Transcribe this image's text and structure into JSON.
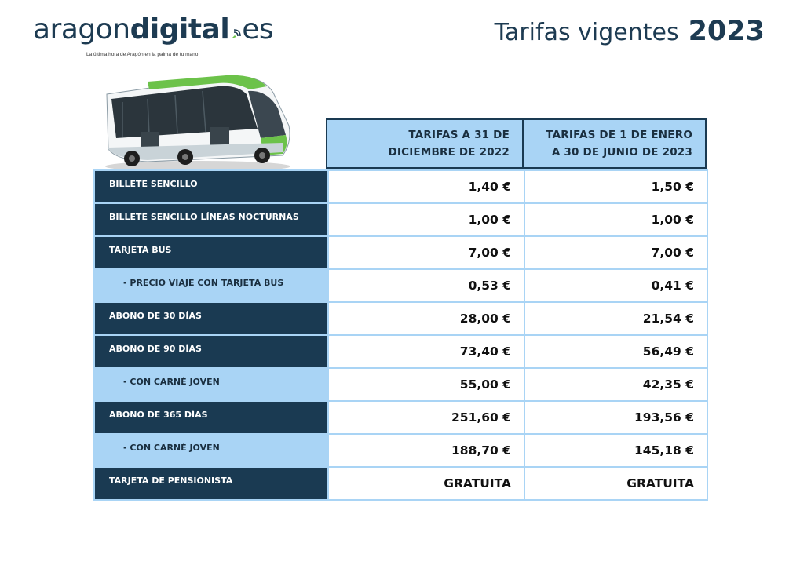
{
  "brand": {
    "name_light": "aragon",
    "name_bold": "digital",
    "tld": "es",
    "tagline": "La última hora de Aragón en la palma de tu mano"
  },
  "title": {
    "text": "Tarifas vigentes",
    "year": "2023"
  },
  "table": {
    "headers": [
      "TARIFAS A 31 DE DICIEMBRE DE 2022",
      "TARIFAS DE 1 DE ENERO A 30 DE JUNIO DE 2023"
    ],
    "rows": [
      {
        "label": "BILLETE SENCILLO",
        "type": "main",
        "v2022": "1,40 €",
        "v2023": "1,50 €"
      },
      {
        "label": "BILLETE SENCILLO LÍNEAS NOCTURNAS",
        "type": "main",
        "v2022": "1,00 €",
        "v2023": "1,00 €"
      },
      {
        "label": "TARJETA BUS",
        "type": "main",
        "v2022": "7,00 €",
        "v2023": "7,00 €"
      },
      {
        "label": "- PRECIO VIAJE CON TARJETA BUS",
        "type": "sub",
        "v2022": "0,53 €",
        "v2023": "0,41 €"
      },
      {
        "label": "ABONO DE 30 DÍAS",
        "type": "main",
        "v2022": "28,00 €",
        "v2023": "21,54 €"
      },
      {
        "label": "ABONO DE 90 DÍAS",
        "type": "main",
        "v2022": "73,40 €",
        "v2023": "56,49 €"
      },
      {
        "label": "- CON CARNÉ JOVEN",
        "type": "sub",
        "v2022": "55,00 €",
        "v2023": "42,35 €"
      },
      {
        "label": "ABONO DE 365 DÍAS",
        "type": "main",
        "v2022": "251,60 €",
        "v2023": "193,56 €"
      },
      {
        "label": "- CON CARNÉ JOVEN",
        "type": "sub",
        "v2022": "188,70 €",
        "v2023": "145,18 €"
      },
      {
        "label": "TARJETA DE PENSIONISTA",
        "type": "main",
        "v2022": "GRATUITA",
        "v2023": "GRATUITA"
      }
    ]
  },
  "colors": {
    "navy": "#1a3a52",
    "light_blue": "#a9d4f5",
    "bus_green": "#6cc24a"
  }
}
